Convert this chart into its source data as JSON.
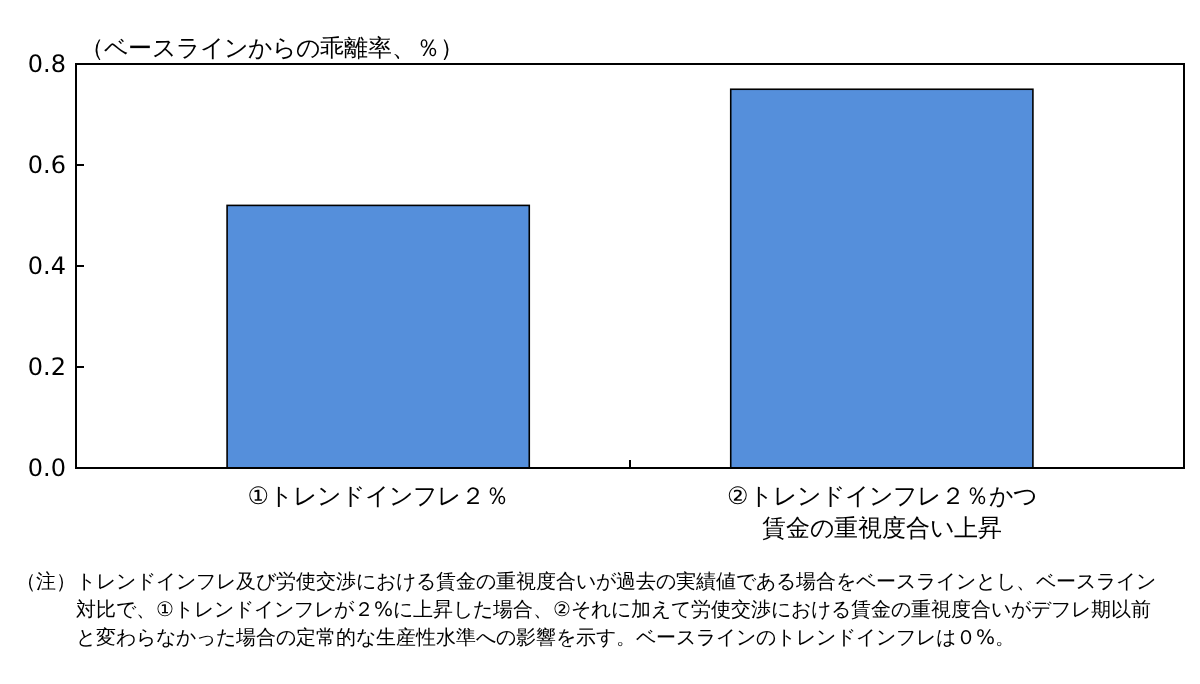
{
  "chart_data": {
    "type": "bar",
    "ylabel": "（ベースラインからの乖離率、％）",
    "categories": [
      "①トレンドインフレ２％",
      "②トレンドインフレ２％かつ賃金の重視度合い上昇"
    ],
    "values": [
      0.52,
      0.75
    ],
    "color": "#558fdb",
    "ylim": [
      0,
      0.8
    ],
    "yticks": [
      {
        "value": 0,
        "label": "0.0"
      },
      {
        "value": 0.2,
        "label": "0.2"
      },
      {
        "value": 0.4,
        "label": "0.4"
      },
      {
        "value": 0.6,
        "label": "0.6"
      },
      {
        "value": 0.8,
        "label": "0.8"
      }
    ],
    "grid": false,
    "annotations": [
      "（注）トレンドインフレ及び労使交渉における賃金の重視度合いが過去の実績値である場合をベースラインとし、ベースライン対比で、①トレンドインフレが２%に上昇した場合、②それに加えて労使交渉における賃金の重視度合いがデフレ期以前と変わらなかった場合の定常的な生産性水準への影響を示す。ベースラインのトレンドインフレは０%。"
    ]
  }
}
